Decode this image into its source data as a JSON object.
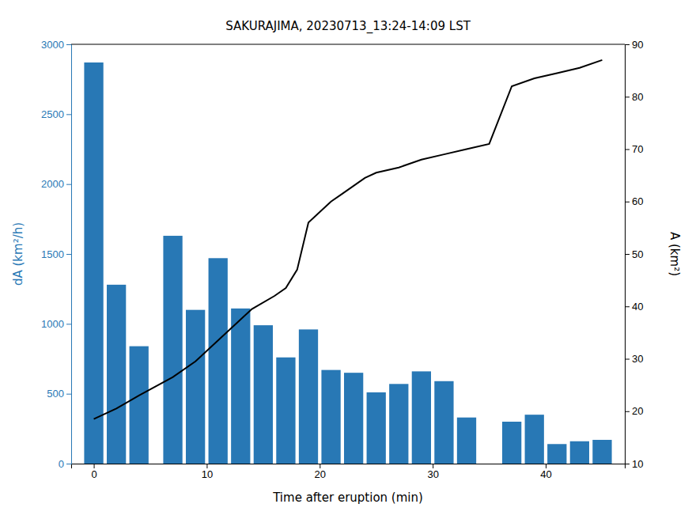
{
  "chart_data": {
    "type": "bar",
    "title": "SAKURAJIMA, 20230713_13:24-14:09 LST",
    "xlabel": "Time after eruption (min)",
    "ylabel": "dA (km²/h)",
    "y2label": "A (km²)",
    "series": [
      {
        "type": "bar",
        "color": "#2878b5",
        "x": [
          0,
          2,
          4,
          7,
          9,
          11,
          13,
          15,
          17,
          19,
          21,
          23,
          25,
          27,
          29,
          31,
          33,
          37,
          39,
          41,
          43,
          45
        ],
        "values": [
          2870,
          1280,
          840,
          1630,
          1100,
          1470,
          1110,
          990,
          760,
          960,
          670,
          650,
          510,
          570,
          660,
          590,
          330,
          300,
          350,
          140,
          160,
          170
        ]
      },
      {
        "type": "line",
        "color": "#000000",
        "axis": "y2",
        "x": [
          0,
          2,
          4,
          7,
          9,
          11,
          13,
          14,
          16,
          17,
          18,
          19,
          20,
          21,
          22,
          23,
          24,
          25,
          27,
          29,
          31,
          33,
          35,
          37,
          39,
          41,
          43,
          45
        ],
        "values": [
          18.5,
          20.5,
          23,
          26.5,
          29.5,
          33.5,
          37.5,
          39.5,
          42,
          43.5,
          47,
          56,
          58,
          60,
          61.5,
          63,
          64.5,
          65.5,
          66.5,
          68,
          69,
          70,
          71,
          82,
          83.5,
          84.5,
          85.5,
          87
        ]
      }
    ],
    "xlim": [
      -2,
      47
    ],
    "xticks": [
      0,
      10,
      20,
      30,
      40
    ],
    "ylim": [
      0,
      3000
    ],
    "yticks": [
      0,
      500,
      1000,
      1500,
      2000,
      2500,
      3000
    ],
    "y2lim": [
      10,
      90
    ],
    "y2ticks": [
      10,
      20,
      30,
      40,
      50,
      60,
      70,
      80,
      90
    ],
    "grid": false
  }
}
